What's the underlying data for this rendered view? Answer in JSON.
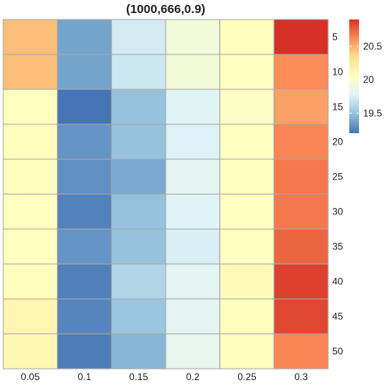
{
  "chart_data": {
    "type": "heatmap",
    "title": "(1000,666,0.9)",
    "xlabel": "",
    "ylabel": "",
    "x_categories": [
      "0.05",
      "0.1",
      "0.15",
      "0.2",
      "0.25",
      "0.3"
    ],
    "y_categories": [
      "5",
      "10",
      "15",
      "20",
      "25",
      "30",
      "35",
      "40",
      "45",
      "50"
    ],
    "values": [
      [
        20.45,
        19.38,
        19.72,
        19.92,
        20.06,
        20.9
      ],
      [
        20.45,
        19.38,
        19.7,
        19.93,
        20.05,
        20.62
      ],
      [
        20.05,
        19.2,
        19.5,
        19.78,
        20.02,
        20.55
      ],
      [
        20.06,
        19.32,
        19.5,
        19.76,
        20.04,
        20.64
      ],
      [
        20.07,
        19.3,
        19.4,
        19.8,
        20.04,
        20.68
      ],
      [
        20.05,
        19.25,
        19.5,
        19.77,
        20.04,
        20.68
      ],
      [
        20.05,
        19.32,
        19.5,
        19.74,
        20.05,
        20.74
      ],
      [
        20.06,
        19.24,
        19.6,
        19.79,
        20.1,
        20.85
      ],
      [
        20.14,
        19.26,
        19.52,
        19.79,
        20.07,
        20.83
      ],
      [
        20.12,
        19.23,
        19.45,
        19.82,
        20.06,
        20.64
      ]
    ],
    "colorbar": {
      "range": [
        19.2,
        20.9
      ],
      "ticks": [
        19.5,
        20,
        20.5
      ],
      "tick_labels": [
        "19.5",
        "20",
        "20.5"
      ],
      "colors": [
        "#4575b4",
        "#91bfdb",
        "#e0f3f8",
        "#ffffbf",
        "#fee090",
        "#fc8d59",
        "#d73027"
      ]
    },
    "grid": true,
    "legend_position": "right"
  }
}
